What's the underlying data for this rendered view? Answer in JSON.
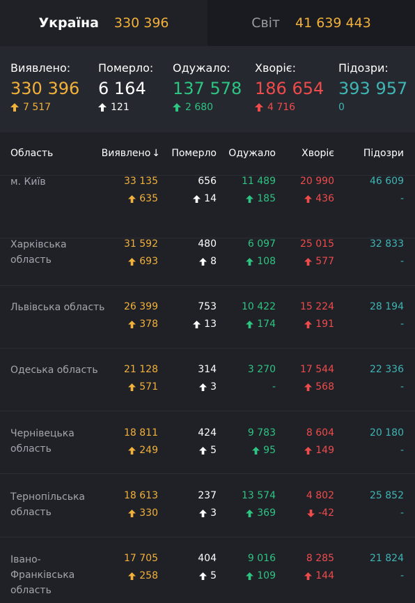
{
  "tabs": {
    "ukraine": {
      "name": "Україна",
      "value": "330 396"
    },
    "world": {
      "name": "Світ",
      "value": "41 639 443"
    }
  },
  "summary": {
    "detected": {
      "label": "Виявлено:",
      "value": "330 396",
      "delta": "7 517"
    },
    "died": {
      "label": "Померло:",
      "value": "6 164",
      "delta": "121"
    },
    "recovered": {
      "label": "Одужало:",
      "value": "137 578",
      "delta": "2 680"
    },
    "sick": {
      "label": "Хворіє:",
      "value": "186 654",
      "delta": "4 716"
    },
    "suspected": {
      "label": "Підозри:",
      "value": "393 957",
      "delta": "0"
    }
  },
  "table": {
    "headers": {
      "region": "Область",
      "detected": "Виявлено",
      "died": "Померло",
      "recovered": "Одужало",
      "sick": "Хворіє",
      "suspected": "Підозри"
    },
    "sort_icon": "arrow-down-icon",
    "rows": [
      {
        "region": "м. Київ",
        "detected": "33 135",
        "detected_delta": "635",
        "died": "656",
        "died_delta": "14",
        "recovered": "11 489",
        "recovered_delta": "185",
        "sick": "20 990",
        "sick_delta": "436",
        "sick_dir": "up",
        "suspected": "46 609",
        "suspected_delta": "-"
      },
      {
        "region": "Харківська область",
        "detected": "31 592",
        "detected_delta": "693",
        "died": "480",
        "died_delta": "8",
        "recovered": "6 097",
        "recovered_delta": "108",
        "sick": "25 015",
        "sick_delta": "577",
        "sick_dir": "up",
        "suspected": "32 833",
        "suspected_delta": "-"
      },
      {
        "region": "Львівська область",
        "detected": "26 399",
        "detected_delta": "378",
        "died": "753",
        "died_delta": "13",
        "recovered": "10 422",
        "recovered_delta": "174",
        "sick": "15 224",
        "sick_delta": "191",
        "sick_dir": "up",
        "suspected": "28 194",
        "suspected_delta": "-"
      },
      {
        "region": "Одеська область",
        "detected": "21 128",
        "detected_delta": "571",
        "died": "314",
        "died_delta": "3",
        "recovered": "3 270",
        "recovered_delta": "-",
        "sick": "17 544",
        "sick_delta": "568",
        "sick_dir": "up",
        "suspected": "22 336",
        "suspected_delta": "-"
      },
      {
        "region": "Чернівецька область",
        "detected": "18 811",
        "detected_delta": "249",
        "died": "424",
        "died_delta": "5",
        "recovered": "9 783",
        "recovered_delta": "95",
        "sick": "8 604",
        "sick_delta": "149",
        "sick_dir": "up",
        "suspected": "20 180",
        "suspected_delta": "-"
      },
      {
        "region": "Тернопільська область",
        "detected": "18 613",
        "detected_delta": "330",
        "died": "237",
        "died_delta": "3",
        "recovered": "13 574",
        "recovered_delta": "369",
        "sick": "4 802",
        "sick_delta": "-42",
        "sick_dir": "down",
        "suspected": "25 852",
        "suspected_delta": "-"
      },
      {
        "region": "Івано-Франківська область",
        "detected": "17 705",
        "detected_delta": "258",
        "died": "404",
        "died_delta": "5",
        "recovered": "9 016",
        "recovered_delta": "109",
        "sick": "8 285",
        "sick_delta": "144",
        "sick_dir": "up",
        "suspected": "21 824",
        "suspected_delta": "-"
      }
    ]
  },
  "colors": {
    "detected": "#f2b13b",
    "died": "#ffffff",
    "recovered": "#2ec482",
    "sick": "#f04b4b",
    "suspected": "#3fb5b4"
  }
}
